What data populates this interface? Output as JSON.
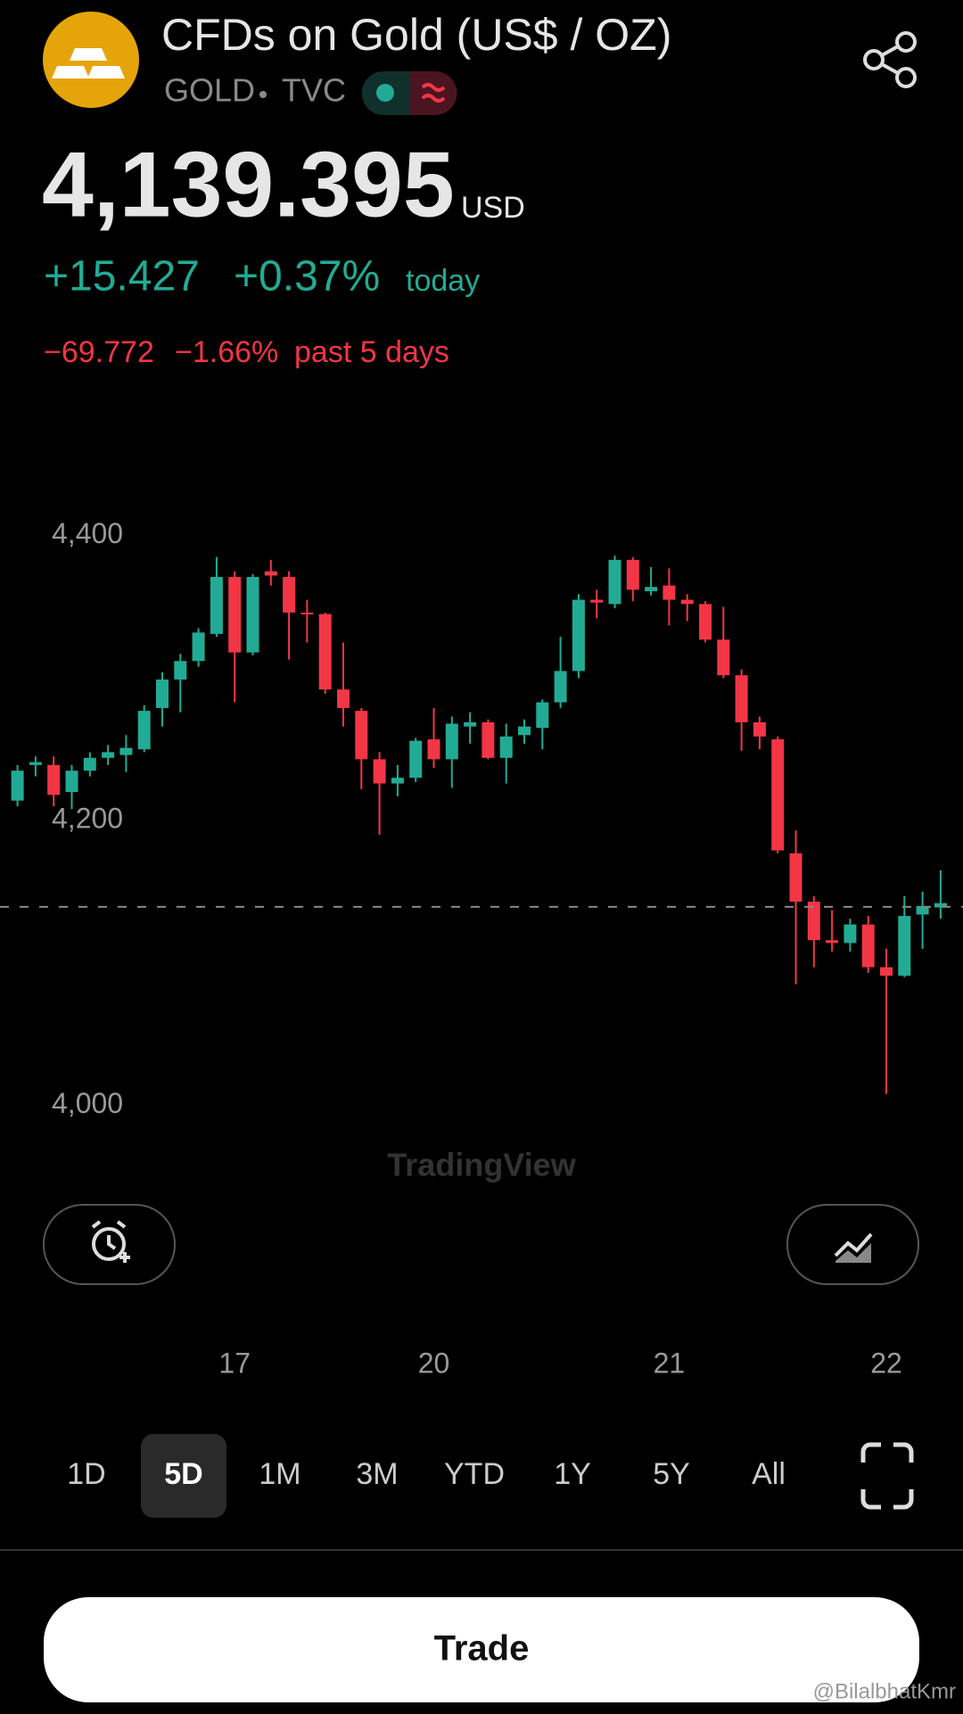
{
  "header": {
    "title": "CFDs on Gold (US$ / OZ)",
    "symbol": "GOLD",
    "exchange": "TVC"
  },
  "quote": {
    "price": "4,139.395",
    "currency": "USD",
    "change": "+15.427",
    "change_percent": "+0.37%",
    "change_period": "today",
    "week_change": "−69.772",
    "week_change_percent": "−1.66%",
    "week_period": "past 5 days"
  },
  "chart_data": {
    "type": "candlestick",
    "watermark": "TradingView",
    "up_color": "#22ab94",
    "down_color": "#f23645",
    "price_line": 4139.395,
    "ylim": [
      3940,
      4470
    ],
    "yticks": [
      {
        "value": 4400,
        "label": "4,400"
      },
      {
        "value": 4200,
        "label": "4,200"
      },
      {
        "value": 4000,
        "label": "4,000"
      }
    ],
    "categories": [
      null,
      null,
      null,
      null,
      null,
      null,
      null,
      null,
      null,
      null,
      null,
      null,
      "17",
      null,
      null,
      null,
      null,
      null,
      null,
      null,
      null,
      null,
      null,
      "20",
      null,
      null,
      null,
      null,
      null,
      null,
      null,
      null,
      null,
      null,
      null,
      null,
      "21",
      null,
      null,
      null,
      null,
      null,
      null,
      null,
      null,
      null,
      null,
      null,
      "22",
      null,
      null,
      null
    ],
    "ohlc": [
      [
        4214,
        4239,
        4210,
        4235
      ],
      [
        4239,
        4245,
        4231,
        4241
      ],
      [
        4239,
        4245,
        4210,
        4218
      ],
      [
        4220,
        4239,
        4208,
        4235
      ],
      [
        4235,
        4248,
        4231,
        4244
      ],
      [
        4244,
        4253,
        4239,
        4248
      ],
      [
        4246,
        4260,
        4234,
        4251
      ],
      [
        4250,
        4281,
        4248,
        4277
      ],
      [
        4279,
        4304,
        4266,
        4299
      ],
      [
        4299,
        4317,
        4276,
        4312
      ],
      [
        4312,
        4335,
        4308,
        4332
      ],
      [
        4331,
        4385,
        4329,
        4371
      ],
      [
        4371,
        4375,
        4283,
        4318
      ],
      [
        4318,
        4373,
        4316,
        4371
      ],
      [
        4375,
        4383,
        4365,
        4372
      ],
      [
        4371,
        4375,
        4313,
        4346
      ],
      [
        4346,
        4355,
        4325,
        4345
      ],
      [
        4345,
        4346,
        4289,
        4292
      ],
      [
        4292,
        4325,
        4266,
        4279
      ],
      [
        4277,
        4279,
        4222,
        4243
      ],
      [
        4243,
        4248,
        4190,
        4226
      ],
      [
        4226,
        4239,
        4217,
        4230
      ],
      [
        4230,
        4258,
        4227,
        4256
      ],
      [
        4257,
        4279,
        4237,
        4243
      ],
      [
        4243,
        4273,
        4223,
        4268
      ],
      [
        4266,
        4276,
        4254,
        4269
      ],
      [
        4269,
        4271,
        4243,
        4244
      ],
      [
        4244,
        4268,
        4226,
        4259
      ],
      [
        4260,
        4271,
        4254,
        4266
      ],
      [
        4265,
        4285,
        4250,
        4283
      ],
      [
        4283,
        4329,
        4279,
        4305
      ],
      [
        4305,
        4359,
        4300,
        4355
      ],
      [
        4355,
        4362,
        4342,
        4353
      ],
      [
        4352,
        4386,
        4349,
        4383
      ],
      [
        4383,
        4385,
        4354,
        4362
      ],
      [
        4361,
        4378,
        4358,
        4364
      ],
      [
        4365,
        4377,
        4337,
        4355
      ],
      [
        4355,
        4359,
        4340,
        4352
      ],
      [
        4352,
        4354,
        4325,
        4327
      ],
      [
        4327,
        4350,
        4300,
        4302
      ],
      [
        4302,
        4306,
        4249,
        4269
      ],
      [
        4269,
        4273,
        4250,
        4259
      ],
      [
        4257,
        4259,
        4177,
        4179
      ],
      [
        4177,
        4193,
        4085,
        4143
      ],
      [
        4143,
        4147,
        4097,
        4116
      ],
      [
        4116,
        4137,
        4108,
        4114
      ],
      [
        4114,
        4131,
        4108,
        4127
      ],
      [
        4127,
        4133,
        4093,
        4097
      ],
      [
        4097,
        4110,
        4008,
        4091
      ],
      [
        4091,
        4147,
        4090,
        4133
      ],
      [
        4134,
        4150,
        4110,
        4140
      ],
      [
        4139,
        4165,
        4131,
        4142
      ]
    ]
  },
  "ranges": {
    "items": [
      "1D",
      "5D",
      "1M",
      "3M",
      "YTD",
      "1Y",
      "5Y",
      "All"
    ],
    "selected": 1
  },
  "action": {
    "trade": "Trade"
  },
  "credit": "@BilalbhatKmr"
}
